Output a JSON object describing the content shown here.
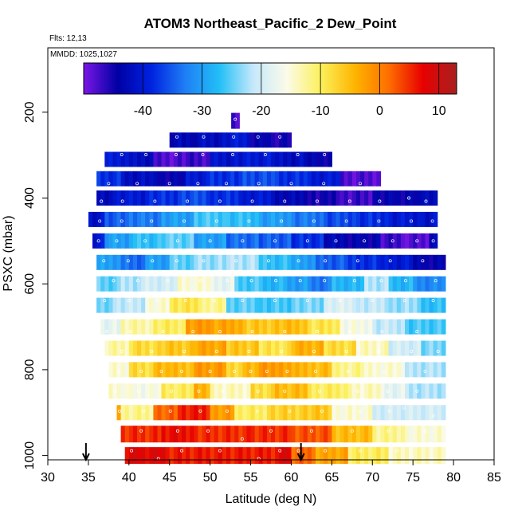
{
  "chart_data": {
    "type": "heatmap",
    "title": "ATOM3 Northeast_Pacific_2 Dew_Point",
    "annotations": {
      "flights": "Flts: 12,13",
      "dates": "MMDD: 1025,1027"
    },
    "xlabel": "Latitude (deg N)",
    "ylabel": "PSXC (mbar)",
    "xlim": [
      30,
      85
    ],
    "ylim": [
      1010,
      50
    ],
    "y_reversed": true,
    "x_ticks": [
      "30",
      "35",
      "40",
      "45",
      "50",
      "55",
      "60",
      "65",
      "70",
      "75",
      "80",
      "85"
    ],
    "y_ticks": [
      "200",
      "400",
      "600",
      "800",
      "1000"
    ],
    "colorbar": {
      "range": [
        -50,
        13
      ],
      "ticks": [
        "-40",
        "-30",
        "-20",
        "-10",
        "0",
        "10"
      ],
      "placement": "top-inside",
      "stops": [
        "#7b16e6",
        "#0000a4",
        "#0022e0",
        "#1f7ff5",
        "#22bff6",
        "#c6e8fb",
        "#fbfbe8",
        "#fcf05a",
        "#feb400",
        "#fe6e00",
        "#e80000",
        "#a82020"
      ]
    },
    "markers": [
      {
        "label": "arrow",
        "lat": 34.7
      },
      {
        "label": "arrow",
        "lat": 61.2
      }
    ],
    "rows": [
      {
        "p": 1000,
        "segs": [
          [
            39.5,
            45,
            8
          ],
          [
            45,
            50,
            6
          ],
          [
            50,
            58,
            6
          ],
          [
            58,
            60,
            8
          ],
          [
            60,
            63,
            2
          ],
          [
            63,
            67,
            -3
          ],
          [
            67,
            72,
            -10
          ],
          [
            72,
            79,
            -14
          ]
        ]
      },
      {
        "p": 950,
        "segs": [
          [
            39,
            44,
            5
          ],
          [
            44,
            48,
            7
          ],
          [
            48,
            55,
            5
          ],
          [
            55,
            60,
            5
          ],
          [
            60,
            65,
            3
          ],
          [
            65,
            70,
            -5
          ],
          [
            70,
            74,
            -12
          ],
          [
            74,
            79,
            -15
          ]
        ]
      },
      {
        "p": 900,
        "segs": [
          [
            38.5,
            39,
            -2
          ],
          [
            39,
            43,
            -12
          ],
          [
            43,
            46,
            2
          ],
          [
            46,
            50,
            6
          ],
          [
            50,
            53,
            -2
          ],
          [
            53,
            57,
            -10
          ],
          [
            57,
            61,
            -7
          ],
          [
            61,
            65,
            -6
          ],
          [
            65,
            70,
            -15
          ],
          [
            70,
            79,
            -20
          ]
        ]
      },
      {
        "p": 850,
        "segs": [
          [
            37.5,
            40,
            -15
          ],
          [
            40,
            44,
            -16
          ],
          [
            44,
            48,
            -10
          ],
          [
            48,
            50,
            -4
          ],
          [
            50,
            55,
            -14
          ],
          [
            55,
            58,
            -8
          ],
          [
            58,
            62,
            -5
          ],
          [
            62,
            67,
            -10
          ],
          [
            67,
            71,
            -14
          ],
          [
            71,
            74,
            -18
          ],
          [
            74,
            79,
            -22
          ]
        ]
      },
      {
        "p": 800,
        "segs": [
          [
            37.5,
            40,
            -15
          ],
          [
            40,
            43,
            -8
          ],
          [
            43,
            45,
            -5
          ],
          [
            45,
            48,
            -5
          ],
          [
            48,
            52,
            -2
          ],
          [
            52,
            54,
            -8
          ],
          [
            54,
            56,
            -5
          ],
          [
            56,
            58,
            -2
          ],
          [
            58,
            61,
            -3
          ],
          [
            61,
            65,
            -5
          ],
          [
            65,
            69,
            -12
          ],
          [
            69,
            74,
            -15
          ],
          [
            74,
            79,
            -22
          ]
        ]
      },
      {
        "p": 750,
        "segs": [
          [
            37,
            40,
            -13
          ],
          [
            40,
            44,
            -8
          ],
          [
            44,
            48,
            -6
          ],
          [
            48,
            52,
            -3
          ],
          [
            52,
            56,
            -6
          ],
          [
            56,
            60,
            -9
          ],
          [
            60,
            64,
            -4
          ],
          [
            64,
            68,
            -8
          ],
          [
            68,
            72,
            -14
          ],
          [
            72,
            76,
            -20
          ],
          [
            76,
            79,
            -24
          ]
        ]
      },
      {
        "p": 700,
        "segs": [
          [
            36.5,
            39,
            -18
          ],
          [
            39,
            43,
            -13
          ],
          [
            43,
            47,
            -10
          ],
          [
            47,
            50,
            -2
          ],
          [
            50,
            54,
            -3
          ],
          [
            54,
            58,
            -6
          ],
          [
            58,
            62,
            -5
          ],
          [
            62,
            66,
            -9
          ],
          [
            66,
            70,
            -16
          ],
          [
            70,
            74,
            -21
          ],
          [
            74,
            79,
            -26
          ]
        ]
      },
      {
        "p": 650,
        "segs": [
          [
            36,
            38,
            -24
          ],
          [
            38,
            42,
            -21
          ],
          [
            42,
            45,
            -15
          ],
          [
            45,
            49,
            -9
          ],
          [
            49,
            52,
            -12
          ],
          [
            52,
            56,
            -25
          ],
          [
            56,
            60,
            -26
          ],
          [
            60,
            64,
            -24
          ],
          [
            64,
            68,
            -19
          ],
          [
            68,
            72,
            -21
          ],
          [
            72,
            76,
            -23
          ],
          [
            76,
            79,
            -27
          ]
        ]
      },
      {
        "p": 600,
        "segs": [
          [
            36,
            39,
            -25
          ],
          [
            39,
            42,
            -22
          ],
          [
            42,
            46,
            -20
          ],
          [
            46,
            50,
            -15
          ],
          [
            50,
            53,
            -18
          ],
          [
            53,
            56,
            -26
          ],
          [
            56,
            59,
            -28
          ],
          [
            59,
            62,
            -30
          ],
          [
            62,
            65,
            -33
          ],
          [
            65,
            69,
            -28
          ],
          [
            69,
            72,
            -22
          ],
          [
            72,
            75,
            -28
          ],
          [
            75,
            79,
            -32
          ]
        ]
      },
      {
        "p": 550,
        "segs": [
          [
            36,
            39,
            -30
          ],
          [
            39,
            42,
            -34
          ],
          [
            42,
            45,
            -30
          ],
          [
            45,
            48,
            -25
          ],
          [
            48,
            52,
            -23
          ],
          [
            52,
            56,
            -22
          ],
          [
            56,
            60,
            -27
          ],
          [
            60,
            63,
            -30
          ],
          [
            63,
            67,
            -35
          ],
          [
            67,
            71,
            -38
          ],
          [
            71,
            75,
            -40
          ],
          [
            75,
            79,
            -44
          ]
        ]
      },
      {
        "p": 500,
        "segs": [
          [
            35.5,
            37,
            -40
          ],
          [
            37,
            40,
            -30
          ],
          [
            40,
            44,
            -27
          ],
          [
            44,
            48,
            -25
          ],
          [
            48,
            52,
            -30
          ],
          [
            52,
            56,
            -34
          ],
          [
            56,
            60,
            -35
          ],
          [
            60,
            64,
            -38
          ],
          [
            64,
            67,
            -43
          ],
          [
            67,
            71,
            -44
          ],
          [
            71,
            74,
            -47
          ],
          [
            74,
            77,
            -48
          ],
          [
            77,
            78,
            -42
          ]
        ]
      },
      {
        "p": 450,
        "segs": [
          [
            35,
            37,
            -41
          ],
          [
            37,
            40,
            -35
          ],
          [
            40,
            44,
            -33
          ],
          [
            44,
            48,
            -30
          ],
          [
            48,
            52,
            -26
          ],
          [
            52,
            56,
            -27
          ],
          [
            56,
            60,
            -30
          ],
          [
            60,
            64,
            -33
          ],
          [
            64,
            68,
            -36
          ],
          [
            68,
            72,
            -38
          ],
          [
            72,
            76,
            -40
          ],
          [
            76,
            78,
            -41
          ]
        ]
      },
      {
        "p": 400,
        "segs": [
          [
            36,
            38,
            -42
          ],
          [
            38,
            42,
            -40
          ],
          [
            42,
            46,
            -38
          ],
          [
            46,
            50,
            -36
          ],
          [
            50,
            54,
            -38
          ],
          [
            54,
            58,
            -40
          ],
          [
            58,
            62,
            -43
          ],
          [
            62,
            66,
            -45
          ],
          [
            66,
            70,
            -47
          ],
          [
            70,
            76,
            -44
          ],
          [
            76,
            78,
            -42
          ]
        ]
      },
      {
        "p": 355,
        "segs": [
          [
            36,
            39,
            -38
          ],
          [
            39,
            43,
            -42
          ],
          [
            43,
            47,
            -44
          ],
          [
            47,
            50,
            -40
          ],
          [
            50,
            54,
            -38
          ],
          [
            54,
            58,
            -36
          ],
          [
            58,
            62,
            -38
          ],
          [
            62,
            66,
            -40
          ],
          [
            66,
            71,
            -48
          ]
        ]
      },
      {
        "p": 310,
        "segs": [
          [
            37,
            40,
            -40
          ],
          [
            40,
            43,
            -42
          ],
          [
            43,
            47,
            -48
          ],
          [
            47,
            50,
            -47
          ],
          [
            50,
            54,
            -41
          ],
          [
            54,
            58,
            -40
          ],
          [
            58,
            62,
            -42
          ],
          [
            62,
            65,
            -44
          ]
        ]
      },
      {
        "p": 265,
        "segs": [
          [
            45,
            48,
            -43
          ],
          [
            48,
            52,
            -42
          ],
          [
            52,
            55,
            -40
          ],
          [
            55,
            58,
            -44
          ],
          [
            58,
            60,
            -45
          ]
        ]
      },
      {
        "p": 220,
        "segs": [
          [
            52.6,
            53.6,
            -47
          ]
        ]
      }
    ]
  }
}
